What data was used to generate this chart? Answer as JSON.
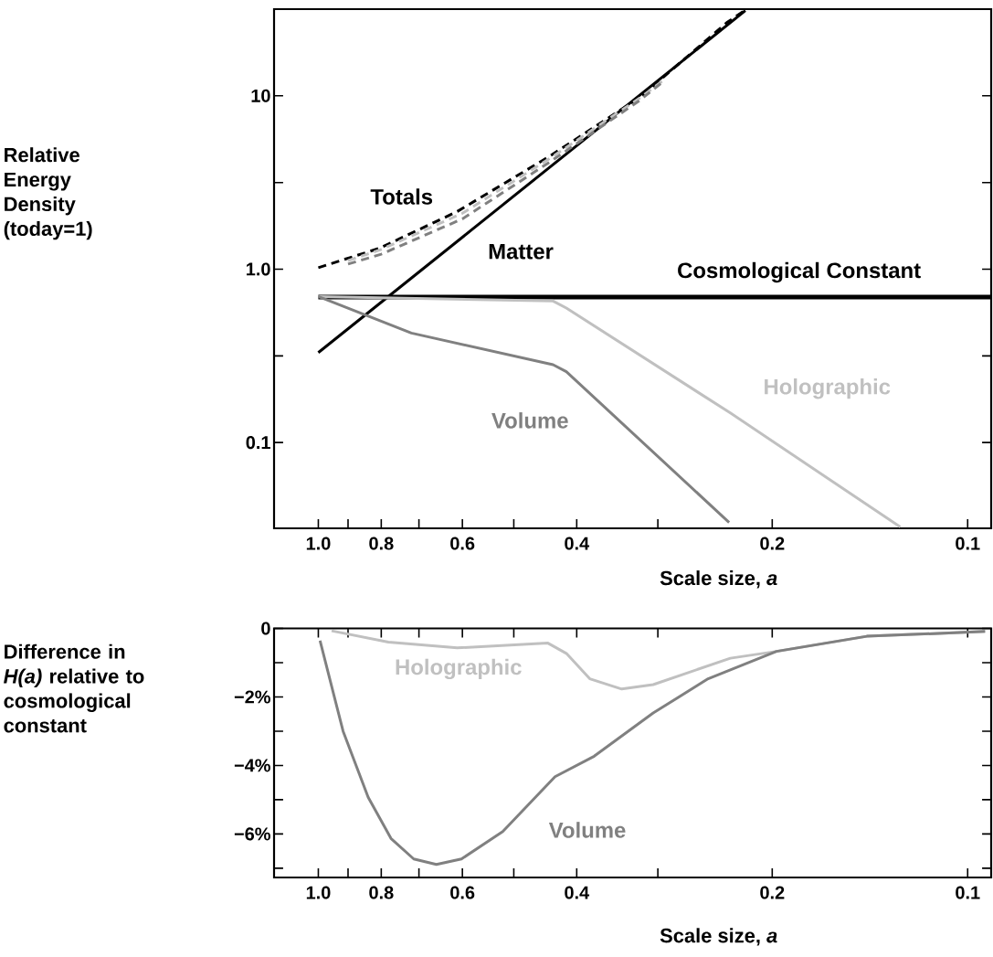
{
  "chart_data": [
    {
      "type": "line",
      "xlabel": "Scale size, *a*",
      "ylabel": "Relative Energy Density (today=1)",
      "log": "xy",
      "marker": "none",
      "xlim": [
        1.17,
        0.092
      ],
      "ylim": [
        0.032,
        31.6
      ],
      "xticks": [
        {
          "value": 1,
          "label": "1.0"
        },
        {
          "value": 0.9,
          "label": null
        },
        0.8,
        {
          "value": 0.7,
          "label": null
        },
        0.6,
        {
          "value": 0.5,
          "label": null
        },
        0.4,
        {
          "value": 0.3,
          "label": null
        },
        0.2,
        0.1
      ],
      "yticks": [
        0.1,
        {
          "value": 0.316,
          "label": null
        },
        {
          "value": 1,
          "label": "1.0"
        },
        {
          "value": 3.16,
          "label": null
        },
        10
      ],
      "series": [
        {
          "name": "Matter",
          "color": "#000000",
          "line_style": "solid",
          "x": [
            1.0,
            0.22
          ],
          "values": [
            0.33,
            31
          ]
        },
        {
          "name": "Cosmological Constant",
          "color": "#000000",
          "line_style": "solid",
          "x": [
            1.0,
            0.092
          ],
          "values": [
            0.69,
            0.69
          ]
        },
        {
          "name": "Totals",
          "color": "#000000",
          "line_style": "dashed",
          "x": [
            1.0,
            0.805,
            0.611,
            0.442,
            0.32,
            0.235,
            0.219
          ],
          "values": [
            1.02,
            1.32,
            2.15,
            4.44,
            9.77,
            26.4,
            31.6
          ]
        },
        {
          "color": "#c0c0c0",
          "line_style": "dashed",
          "x": [
            0.9,
            0.8,
            0.6,
            0.44,
            0.32,
            0.295
          ],
          "values": [
            1.12,
            1.3,
            2.1,
            4.35,
            9.7,
            12.2
          ]
        },
        {
          "color": "#808080",
          "line_style": "dashed",
          "x": [
            0.9,
            0.8,
            0.6,
            0.44,
            0.32,
            0.295
          ],
          "values": [
            1.07,
            1.22,
            1.95,
            4.15,
            9.4,
            12.0
          ]
        },
        {
          "name": "Holographic",
          "color": "#c0c0c0",
          "line_style": "solid",
          "x": [
            1.0,
            0.435,
            0.415,
            0.232,
            0.127
          ],
          "values": [
            0.695,
            0.655,
            0.597,
            0.148,
            0.0326
          ]
        },
        {
          "name": "Volume",
          "color": "#808080",
          "line_style": "solid",
          "x": [
            1.0,
            0.719,
            0.435,
            0.415,
            0.233
          ],
          "values": [
            0.695,
            0.428,
            0.281,
            0.256,
            0.0346
          ]
        }
      ]
    },
    {
      "type": "line",
      "xlabel": "Scale size, *a*",
      "ylabel": "Difference in *H(a)* relative to cosmological constant",
      "log": "x",
      "marker": "none",
      "xlim": [
        1.17,
        0.092
      ],
      "ylim": [
        -7.27,
        0
      ],
      "xticks": [
        {
          "value": 1,
          "label": "1.0"
        },
        {
          "value": 0.9,
          "label": null
        },
        0.8,
        {
          "value": 0.7,
          "label": null
        },
        0.6,
        {
          "value": 0.5,
          "label": null
        },
        0.4,
        {
          "value": 0.3,
          "label": null
        },
        0.2,
        0.1
      ],
      "yticks": [
        {
          "value": -7,
          "label": null
        },
        {
          "value": -6,
          "label": "−6%"
        },
        {
          "value": -5,
          "label": null
        },
        {
          "value": -4,
          "label": "−4%"
        },
        {
          "value": -3,
          "label": null
        },
        {
          "value": -2,
          "label": "−2%"
        },
        {
          "value": -1,
          "label": null
        },
        0
      ],
      "series": [
        {
          "name": "Holographic",
          "color": "#c0c0c0",
          "line_style": "solid",
          "x": [
            0.954,
            0.78,
            0.611,
            0.443,
            0.415,
            0.382,
            0.341,
            0.305,
            0.232,
            0.197,
            0.143,
            0.094
          ],
          "values": [
            -0.07,
            -0.4,
            -0.57,
            -0.43,
            -0.73,
            -1.47,
            -1.77,
            -1.64,
            -0.87,
            -0.67,
            -0.23,
            -0.09
          ]
        },
        {
          "name": "Volume",
          "color": "#808080",
          "line_style": "solid",
          "x": [
            0.994,
            0.916,
            0.838,
            0.773,
            0.713,
            0.658,
            0.602,
            0.52,
            0.432,
            0.376,
            0.305,
            0.251,
            0.197,
            0.143,
            0.094
          ],
          "values": [
            -0.36,
            -3.0,
            -4.93,
            -6.13,
            -6.73,
            -6.89,
            -6.73,
            -5.93,
            -4.33,
            -3.73,
            -2.47,
            -1.47,
            -0.67,
            -0.23,
            -0.09
          ]
        }
      ]
    }
  ]
}
